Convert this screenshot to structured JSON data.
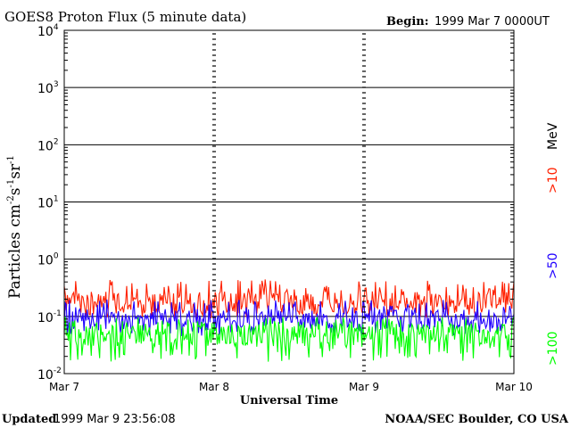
{
  "header": {
    "title": "GOES8 Proton Flux (5 minute data)",
    "begin_label": "Begin:",
    "begin_value": "1999 Mar 7 0000UT"
  },
  "footer": {
    "updated_label": "Updated",
    "updated_value": "1999 Mar  9 23:56:08",
    "credit": "NOAA/SEC Boulder, CO USA"
  },
  "chart_data": {
    "type": "line",
    "title": "GOES8 Proton Flux (5 minute data)",
    "xlabel": "Universal Time",
    "ylabel_base": "Particles cm",
    "ylabel_exp1": "-2",
    "ylabel_mid1": "s",
    "ylabel_exp2": "-1",
    "ylabel_mid2": "sr",
    "ylabel_exp3": "-1",
    "x_ticks": [
      "Mar 7",
      "Mar 8",
      "Mar 9",
      "Mar 10"
    ],
    "xlim_days": [
      0,
      3
    ],
    "y_scale": "log",
    "ylim": [
      0.01,
      10000
    ],
    "y_ticks": [
      {
        "base": "10",
        "exp": "4"
      },
      {
        "base": "10",
        "exp": "3"
      },
      {
        "base": "10",
        "exp": "2"
      },
      {
        "base": "10",
        "exp": "1"
      },
      {
        "base": "10",
        "exp": "0"
      },
      {
        "base": "10",
        "exp": "-1"
      },
      {
        "base": "10",
        "exp": "-2"
      }
    ],
    "grid": "horizontal at each decade",
    "sample_interval": "5 minute",
    "series": [
      {
        "name": ">10",
        "color": "#ff2000",
        "typical_flux": 0.17,
        "min_flux": 0.09,
        "max_flux": 0.45
      },
      {
        "name": ">50",
        "color": "#2000ff",
        "typical_flux": 0.09,
        "min_flux": 0.045,
        "max_flux": 0.2
      },
      {
        "name": ">100",
        "color": "#00ff00",
        "typical_flux": 0.05,
        "min_flux": 0.016,
        "max_flux": 0.1
      }
    ],
    "legend": {
      "unit": "MeV",
      "placement": "right, vertical",
      "items": [
        ">10",
        ">50",
        ">100"
      ]
    }
  }
}
